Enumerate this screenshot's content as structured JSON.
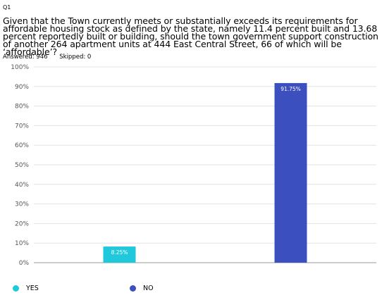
{
  "question_number": "Q1",
  "question_text": " Given that the Town currently meets or substantially exceeds its requirements for affordable housing stock as defined by the state, namely 11.4 percent built and 13.68 percent reportedly built or building, should the town government support construction of another 264 apartment units at 444 East Central Street, 66 of which will be ‘affordable’?",
  "answered_label": "Answered: 946",
  "skipped_label": "Skipped: 0",
  "chart_data": {
    "type": "bar",
    "categories": [
      "YES",
      "NO"
    ],
    "values": [
      8.25,
      91.75
    ],
    "data_labels": [
      "8.25%",
      "91.75%"
    ],
    "colors": [
      "#20c8dc",
      "#3c4fbe"
    ],
    "ylim": [
      0,
      100
    ],
    "yticks": [
      "0%",
      "10%",
      "20%",
      "30%",
      "40%",
      "50%",
      "60%",
      "70%",
      "80%",
      "90%",
      "100%"
    ],
    "grid": true,
    "legend": "bottom-left"
  }
}
